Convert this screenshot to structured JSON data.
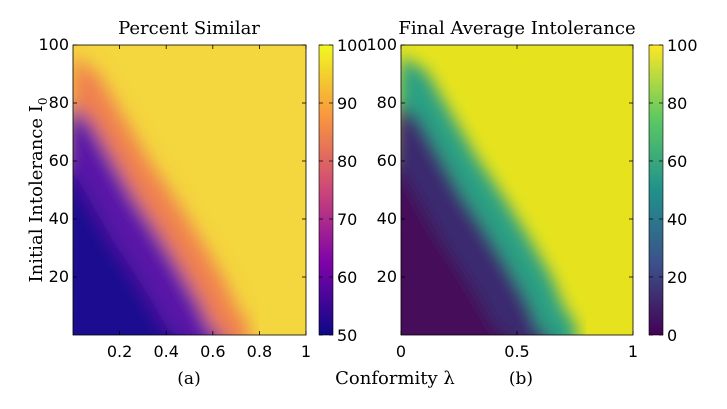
{
  "figure": {
    "x_label_shared": "Conformity λ",
    "y_label_shared": "Initial Intolerance I",
    "y_label_subscript": "0"
  },
  "chart_data": [
    {
      "type": "heatmap",
      "panel": "a",
      "title": "Percent Similar",
      "caption": "(a)",
      "xlabel": "Conformity λ",
      "ylabel": "Initial Intolerance I0",
      "xlim": [
        0,
        1
      ],
      "ylim": [
        0,
        100
      ],
      "xticks": [
        0.2,
        0.4,
        0.6,
        0.8,
        1
      ],
      "xtick_labels": [
        "0.2",
        "0.4",
        "0.6",
        "0.8",
        "1"
      ],
      "yticks": [
        20,
        40,
        60,
        80,
        100
      ],
      "ytick_labels": [
        "20",
        "40",
        "60",
        "80",
        "100"
      ],
      "colormap": "plasma",
      "colorbar": {
        "range": [
          50,
          100
        ],
        "ticks": [
          50,
          60,
          70,
          80,
          90,
          100
        ],
        "tick_labels": [
          "50",
          "60",
          "70",
          "80",
          "90",
          "100"
        ]
      },
      "boundary": [
        [
          0.0,
          88
        ],
        [
          0.1,
          82
        ],
        [
          0.2,
          68
        ],
        [
          0.3,
          54
        ],
        [
          0.4,
          42
        ],
        [
          0.5,
          29
        ],
        [
          0.6,
          15
        ],
        [
          0.65,
          6
        ],
        [
          0.7,
          0
        ]
      ],
      "value_low": 50,
      "value_high": 97
    },
    {
      "type": "heatmap",
      "panel": "b",
      "title": "Final Average Intolerance",
      "caption": "(b)",
      "xlabel": "Conformity λ",
      "xlim": [
        0,
        1
      ],
      "ylim": [
        0,
        100
      ],
      "xticks": [
        0,
        0.5,
        1
      ],
      "xtick_labels": [
        "0",
        "0.5",
        "1"
      ],
      "yticks": [
        20,
        40,
        60,
        80,
        100
      ],
      "ytick_labels": [
        "20",
        "40",
        "60",
        "80",
        "100"
      ],
      "colormap": "viridis",
      "colorbar": {
        "range": [
          0,
          100
        ],
        "ticks": [
          0,
          20,
          40,
          60,
          80,
          100
        ],
        "tick_labels": [
          "0",
          "20",
          "40",
          "60",
          "80",
          "100"
        ]
      },
      "boundary": [
        [
          0.0,
          88
        ],
        [
          0.1,
          83
        ],
        [
          0.2,
          69
        ],
        [
          0.3,
          55
        ],
        [
          0.4,
          43
        ],
        [
          0.5,
          30
        ],
        [
          0.6,
          16
        ],
        [
          0.65,
          6
        ],
        [
          0.7,
          0
        ]
      ],
      "value_low": 5,
      "value_high": 95
    }
  ]
}
